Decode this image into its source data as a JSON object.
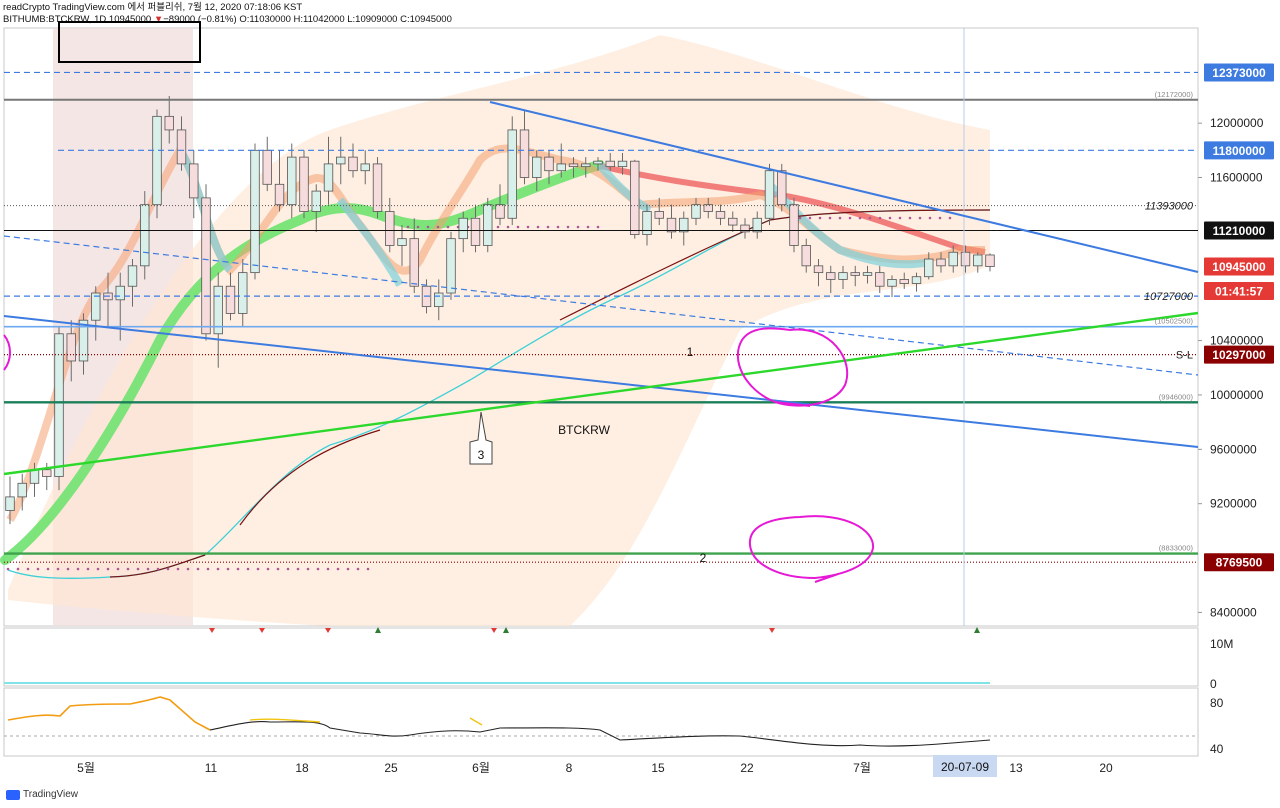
{
  "header": {
    "line1": "readCrypto TradingView.com 에서 퍼블리쉬, 7월 12, 2020 07:18:06 KST",
    "symbol": "BITHUMB:BTCKRW, 1D",
    "last": "10945000",
    "change_arrow": "▼",
    "change": "−89000 (−0.81%)",
    "ohlc_o": "O:11030000",
    "ohlc_h": "H:11042000",
    "ohlc_l": "L:10909000",
    "ohlc_c": "C:10945000"
  },
  "footer": {
    "brand": "TradingView"
  },
  "colors": {
    "up": "#d9efe9",
    "down": "#f6dcdc",
    "blue_line": "#3d7be0",
    "green_line": "#2bd82b",
    "last_price": "#e53935",
    "dark_red": "#8b0000",
    "magenta": "#e619d6"
  },
  "chart_data": {
    "type": "candlestick",
    "symbol_label": "BTCKRW",
    "x_ticks": [
      "5월",
      "11",
      "18",
      "25",
      "6월",
      "8",
      "15",
      "22",
      "7월",
      "13",
      "20"
    ],
    "x_cursor_label": "20-07-09",
    "y_ticks": [
      "12000000",
      "11600000",
      "10400000",
      "10000000",
      "9600000",
      "9200000",
      "8400000"
    ],
    "price_labels": [
      {
        "text": "12373000",
        "value": 12373000,
        "style": "blue"
      },
      {
        "text": "11800000",
        "value": 11800000,
        "style": "blue"
      },
      {
        "text": "11210000",
        "value": 11210000,
        "style": "black"
      },
      {
        "text": "10945000",
        "value": 10945000,
        "style": "red"
      },
      {
        "text": "01:41:57",
        "value": 10765000,
        "style": "red"
      },
      {
        "text": "10297000",
        "value": 10297000,
        "style": "darkred"
      },
      {
        "text": "8769500",
        "value": 8769500,
        "style": "darkred"
      }
    ],
    "level_texts": [
      {
        "text": "(12172000)",
        "value": 12172000
      },
      {
        "text": "11393000",
        "value": 11393000
      },
      {
        "text": "10727000",
        "value": 10727000
      },
      {
        "text": "(10502500)",
        "value": 10502500
      },
      {
        "text": "S-L",
        "value": 10297000
      },
      {
        "text": "(9946000)",
        "value": 9946000
      },
      {
        "text": "(8833000)",
        "value": 8833000
      }
    ],
    "annotations": [
      "1",
      "2",
      "3"
    ],
    "volume_axis": [
      "10M",
      "0"
    ],
    "osc_axis": [
      "80",
      "40"
    ],
    "candles": [
      [
        9150000,
        9400000,
        9050000,
        9250000
      ],
      [
        9250000,
        9420000,
        9150000,
        9350000
      ],
      [
        9350000,
        9500000,
        9250000,
        9450000
      ],
      [
        9450000,
        9500000,
        9300000,
        9400000
      ],
      [
        9400000,
        10500000,
        9300000,
        10450000
      ],
      [
        10450000,
        10550000,
        10100000,
        10250000
      ],
      [
        10250000,
        10600000,
        10150000,
        10550000
      ],
      [
        10550000,
        10800000,
        10400000,
        10750000
      ],
      [
        10750000,
        10900000,
        10500000,
        10700000
      ],
      [
        10700000,
        10900000,
        10400000,
        10800000
      ],
      [
        10800000,
        11000000,
        10650000,
        10950000
      ],
      [
        10950000,
        11500000,
        10850000,
        11400000
      ],
      [
        11400000,
        12100000,
        11300000,
        12050000
      ],
      [
        12050000,
        12200000,
        11850000,
        11950000
      ],
      [
        11950000,
        12050000,
        11650000,
        11700000
      ],
      [
        11700000,
        11800000,
        11300000,
        11450000
      ],
      [
        11450000,
        11550000,
        10400000,
        10450000
      ],
      [
        10450000,
        10900000,
        10200000,
        10800000
      ],
      [
        10800000,
        10900000,
        10550000,
        10600000
      ],
      [
        10600000,
        11000000,
        10500000,
        10900000
      ],
      [
        10900000,
        11850000,
        10850000,
        11800000
      ],
      [
        11800000,
        11900000,
        11500000,
        11550000
      ],
      [
        11550000,
        11800000,
        11350000,
        11400000
      ],
      [
        11400000,
        11850000,
        11300000,
        11750000
      ],
      [
        11750000,
        11800000,
        11300000,
        11350000
      ],
      [
        11350000,
        11550000,
        11200000,
        11500000
      ],
      [
        11500000,
        11900000,
        11400000,
        11700000
      ],
      [
        11700000,
        11900000,
        11550000,
        11750000
      ],
      [
        11750000,
        11850000,
        11600000,
        11650000
      ],
      [
        11650000,
        11800000,
        11550000,
        11700000
      ],
      [
        11700000,
        11750000,
        11300000,
        11350000
      ],
      [
        11350000,
        11450000,
        11050000,
        11100000
      ],
      [
        11100000,
        11250000,
        10950000,
        11150000
      ],
      [
        11150000,
        11300000,
        10750000,
        10800000
      ],
      [
        10800000,
        10850000,
        10600000,
        10650000
      ],
      [
        10650000,
        10850000,
        10550000,
        10750000
      ],
      [
        10750000,
        11200000,
        10700000,
        11150000
      ],
      [
        11150000,
        11350000,
        11050000,
        11300000
      ],
      [
        11300000,
        11400000,
        11050000,
        11100000
      ],
      [
        11100000,
        11450000,
        11050000,
        11400000
      ],
      [
        11400000,
        11550000,
        11250000,
        11300000
      ],
      [
        11300000,
        12050000,
        11250000,
        11950000
      ],
      [
        11950000,
        12100000,
        11550000,
        11600000
      ],
      [
        11600000,
        11800000,
        11500000,
        11750000
      ],
      [
        11750000,
        11800000,
        11550000,
        11650000
      ],
      [
        11650000,
        11850000,
        11600000,
        11700000
      ],
      [
        11700000,
        11750000,
        11600000,
        11680000
      ],
      [
        11680000,
        11750000,
        11600000,
        11700000
      ],
      [
        11700000,
        11750000,
        11650000,
        11720000
      ],
      [
        11720000,
        11780000,
        11650000,
        11680000
      ],
      [
        11680000,
        11780000,
        11620000,
        11720000
      ],
      [
        11720000,
        11730000,
        11150000,
        11180000
      ],
      [
        11180000,
        11400000,
        11100000,
        11350000
      ],
      [
        11350000,
        11450000,
        11250000,
        11300000
      ],
      [
        11300000,
        11400000,
        11150000,
        11200000
      ],
      [
        11200000,
        11350000,
        11100000,
        11300000
      ],
      [
        11300000,
        11450000,
        11250000,
        11400000
      ],
      [
        11400000,
        11450000,
        11300000,
        11350000
      ],
      [
        11350000,
        11400000,
        11250000,
        11300000
      ],
      [
        11300000,
        11350000,
        11200000,
        11250000
      ],
      [
        11250000,
        11300000,
        11150000,
        11200000
      ],
      [
        11200000,
        11350000,
        11150000,
        11300000
      ],
      [
        11300000,
        11700000,
        11250000,
        11650000
      ],
      [
        11650000,
        11700000,
        11350000,
        11400000
      ],
      [
        11400000,
        11450000,
        11050000,
        11100000
      ],
      [
        11100000,
        11150000,
        10900000,
        10950000
      ],
      [
        10950000,
        11000000,
        10800000,
        10900000
      ],
      [
        10900000,
        10950000,
        10750000,
        10850000
      ],
      [
        10850000,
        10950000,
        10780000,
        10900000
      ],
      [
        10900000,
        10950000,
        10800000,
        10880000
      ],
      [
        10880000,
        10950000,
        10820000,
        10900000
      ],
      [
        10900000,
        10950000,
        10750000,
        10800000
      ],
      [
        10800000,
        10880000,
        10720000,
        10850000
      ],
      [
        10850000,
        10900000,
        10780000,
        10820000
      ],
      [
        10820000,
        10900000,
        10760000,
        10870000
      ],
      [
        10870000,
        11050000,
        10850000,
        11000000
      ],
      [
        11000000,
        11050000,
        10900000,
        10950000
      ],
      [
        10950000,
        11100000,
        10900000,
        11050000
      ],
      [
        11050000,
        11100000,
        10900000,
        10950000
      ],
      [
        10950000,
        11050000,
        10900000,
        11030000
      ],
      [
        11030000,
        11042000,
        10909000,
        10945000
      ]
    ]
  }
}
